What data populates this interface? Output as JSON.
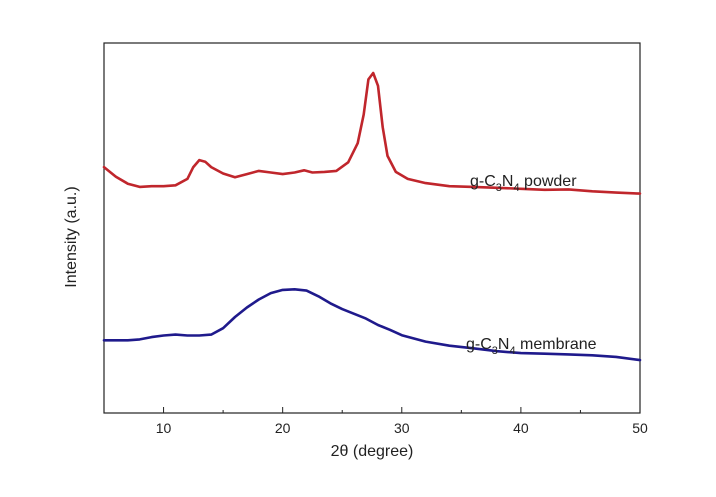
{
  "chart_data": {
    "type": "line",
    "title": "",
    "xlabel": "2θ (degree)",
    "ylabel": "Intensity (a.u.)",
    "xlim": [
      5,
      50
    ],
    "ylim": [
      0,
      1
    ],
    "x_ticks": [
      10,
      20,
      30,
      40,
      50
    ],
    "y_ticks": [],
    "grid": false,
    "legend": "none (inline labels)",
    "series": [
      {
        "label_parts": [
          "g-C",
          "3",
          "N",
          "4",
          " powder"
        ],
        "color": "#c0262c",
        "points": [
          [
            5,
            0.705
          ],
          [
            6,
            0.675
          ],
          [
            7,
            0.653
          ],
          [
            8,
            0.643
          ],
          [
            9,
            0.645
          ],
          [
            10,
            0.645
          ],
          [
            11,
            0.648
          ],
          [
            12,
            0.668
          ],
          [
            12.5,
            0.705
          ],
          [
            13,
            0.727
          ],
          [
            13.5,
            0.722
          ],
          [
            14,
            0.705
          ],
          [
            15,
            0.685
          ],
          [
            16,
            0.673
          ],
          [
            17,
            0.683
          ],
          [
            18,
            0.693
          ],
          [
            19,
            0.688
          ],
          [
            20,
            0.683
          ],
          [
            21,
            0.688
          ],
          [
            21.8,
            0.695
          ],
          [
            22.5,
            0.688
          ],
          [
            23.5,
            0.69
          ],
          [
            24.5,
            0.693
          ],
          [
            25.5,
            0.72
          ],
          [
            26.3,
            0.78
          ],
          [
            26.8,
            0.87
          ],
          [
            27.2,
            0.98
          ],
          [
            27.6,
            1.0
          ],
          [
            28,
            0.96
          ],
          [
            28.4,
            0.83
          ],
          [
            28.8,
            0.74
          ],
          [
            29.5,
            0.69
          ],
          [
            30.5,
            0.668
          ],
          [
            32,
            0.655
          ],
          [
            34,
            0.645
          ],
          [
            36,
            0.643
          ],
          [
            38,
            0.64
          ],
          [
            40,
            0.637
          ],
          [
            42,
            0.634
          ],
          [
            44,
            0.635
          ],
          [
            46,
            0.629
          ],
          [
            48,
            0.625
          ],
          [
            50,
            0.622
          ]
        ]
      },
      {
        "label_parts": [
          "g-C",
          "3",
          "N",
          "4",
          " membrane"
        ],
        "color": "#1f1a8c",
        "points": [
          [
            5,
            0.162
          ],
          [
            7,
            0.162
          ],
          [
            8,
            0.165
          ],
          [
            9,
            0.172
          ],
          [
            10,
            0.177
          ],
          [
            11,
            0.18
          ],
          [
            12,
            0.177
          ],
          [
            13,
            0.177
          ],
          [
            14,
            0.18
          ],
          [
            15,
            0.2
          ],
          [
            16,
            0.235
          ],
          [
            17,
            0.265
          ],
          [
            18,
            0.29
          ],
          [
            19,
            0.31
          ],
          [
            20,
            0.32
          ],
          [
            21,
            0.322
          ],
          [
            22,
            0.318
          ],
          [
            23,
            0.3
          ],
          [
            24,
            0.278
          ],
          [
            25,
            0.26
          ],
          [
            26,
            0.245
          ],
          [
            27,
            0.23
          ],
          [
            28,
            0.21
          ],
          [
            29,
            0.195
          ],
          [
            30,
            0.178
          ],
          [
            32,
            0.158
          ],
          [
            34,
            0.145
          ],
          [
            36,
            0.137
          ],
          [
            38,
            0.128
          ],
          [
            40,
            0.122
          ],
          [
            42,
            0.12
          ],
          [
            44,
            0.118
          ],
          [
            46,
            0.115
          ],
          [
            48,
            0.11
          ],
          [
            50,
            0.1
          ]
        ]
      }
    ]
  }
}
